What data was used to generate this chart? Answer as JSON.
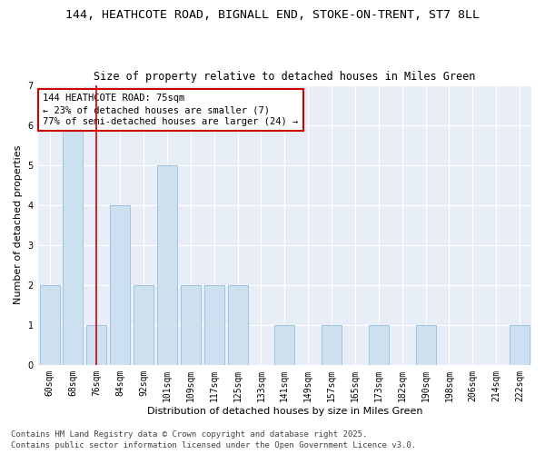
{
  "title_line1": "144, HEATHCOTE ROAD, BIGNALL END, STOKE-ON-TRENT, ST7 8LL",
  "title_line2": "Size of property relative to detached houses in Miles Green",
  "xlabel": "Distribution of detached houses by size in Miles Green",
  "ylabel": "Number of detached properties",
  "categories": [
    "60sqm",
    "68sqm",
    "76sqm",
    "84sqm",
    "92sqm",
    "101sqm",
    "109sqm",
    "117sqm",
    "125sqm",
    "133sqm",
    "141sqm",
    "149sqm",
    "157sqm",
    "165sqm",
    "173sqm",
    "182sqm",
    "190sqm",
    "198sqm",
    "206sqm",
    "214sqm",
    "222sqm"
  ],
  "values": [
    2,
    6,
    1,
    4,
    2,
    5,
    2,
    2,
    2,
    0,
    1,
    0,
    1,
    0,
    1,
    0,
    1,
    0,
    0,
    0,
    1
  ],
  "bar_color": "#cce0f0",
  "bar_edge_color": "#a0c4e0",
  "red_line_index": 2,
  "annotation_text": "144 HEATHCOTE ROAD: 75sqm\n← 23% of detached houses are smaller (7)\n77% of semi-detached houses are larger (24) →",
  "annotation_box_color": "#ffffff",
  "annotation_box_edge": "#cc0000",
  "red_line_color": "#cc0000",
  "background_color": "#e8eef8",
  "ylim": [
    0,
    7
  ],
  "yticks": [
    0,
    1,
    2,
    3,
    4,
    5,
    6,
    7
  ],
  "footer_line1": "Contains HM Land Registry data © Crown copyright and database right 2025.",
  "footer_line2": "Contains public sector information licensed under the Open Government Licence v3.0.",
  "title_fontsize": 9.5,
  "subtitle_fontsize": 8.5,
  "axis_label_fontsize": 8,
  "tick_fontsize": 7,
  "annotation_fontsize": 7.5,
  "footer_fontsize": 6.5
}
